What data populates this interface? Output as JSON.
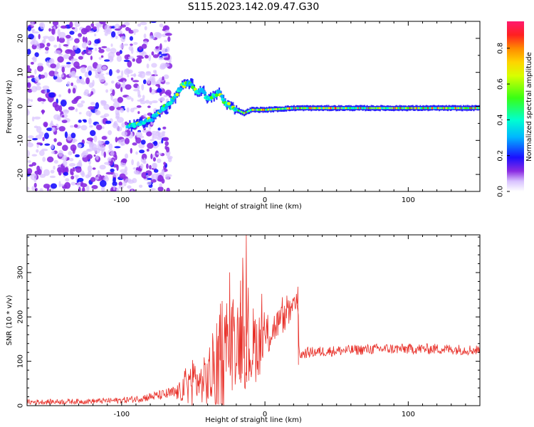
{
  "figure": {
    "title": "S115.2023.142.09.47.G30"
  },
  "chart_data": [
    {
      "type": "heatmap",
      "xlabel": "Height of straight line (km)",
      "ylabel": "Frequency (Hz)",
      "colorbar_label": "Normalized spectral amplitude",
      "xlim": [
        -166,
        150
      ],
      "ylim": [
        -25,
        25
      ],
      "xticks": [
        -100,
        0,
        100
      ],
      "yticks": [
        -20,
        -10,
        0,
        10,
        20
      ],
      "colorbar_ticks": [
        0.0,
        0.2,
        0.4,
        0.6,
        0.8
      ],
      "colorbar_range": [
        0,
        0.95
      ],
      "colormap": [
        "#ffffff",
        "#d8c2ff",
        "#8a2be2",
        "#1a10ff",
        "#00b7ff",
        "#00ffd0",
        "#39ff14",
        "#d8ff00",
        "#ffd400",
        "#ff8c00",
        "#ff2020",
        "#ff1a6e"
      ],
      "ridge": {
        "x": [
          -96,
          -88,
          -80,
          -72,
          -64,
          -58,
          -52,
          -48,
          -44,
          -40,
          -36,
          -32,
          -28,
          -24,
          -20,
          -15,
          -10,
          -5,
          0,
          20,
          60,
          100,
          150
        ],
        "freq": [
          -6,
          -5,
          -4,
          -1,
          2,
          6,
          7,
          4,
          5,
          2,
          3,
          4,
          1,
          0,
          -1,
          -2,
          -1,
          -1,
          -1,
          -0.5,
          -0.5,
          -0.5,
          -0.5
        ]
      },
      "background": "noise over x < -65 km"
    },
    {
      "type": "line",
      "xlabel": "Height of straight line (km)",
      "ylabel": "SNR (10 * v/v)",
      "xlim": [
        -166,
        150
      ],
      "ylim": [
        0,
        385
      ],
      "xticks": [
        -100,
        0,
        100
      ],
      "yticks": [
        0,
        100,
        200,
        300
      ],
      "color": "#e8312a",
      "envelope": {
        "x": [
          -166,
          -120,
          -100,
          -90,
          -80,
          -70,
          -60,
          -55,
          -50,
          -45,
          -40,
          -35,
          -30,
          -25,
          -20,
          -15,
          -12,
          -10,
          -5,
          0,
          5,
          10,
          15,
          20,
          23,
          24,
          25,
          30,
          40,
          60,
          80,
          100,
          120,
          150
        ],
        "mean": [
          8,
          10,
          12,
          15,
          20,
          25,
          30,
          45,
          60,
          50,
          60,
          80,
          110,
          130,
          150,
          160,
          120,
          130,
          140,
          150,
          170,
          190,
          200,
          220,
          230,
          110,
          115,
          120,
          122,
          125,
          128,
          128,
          128,
          125
        ],
        "amp": [
          6,
          6,
          7,
          8,
          10,
          12,
          20,
          45,
          60,
          40,
          70,
          100,
          120,
          110,
          100,
          120,
          90,
          100,
          80,
          60,
          40,
          35,
          30,
          25,
          20,
          12,
          12,
          12,
          12,
          12,
          12,
          12,
          12,
          12
        ]
      },
      "peaks": [
        {
          "x": -13,
          "y": 385
        },
        {
          "x": -17,
          "y": 282
        },
        {
          "x": -31,
          "y": 230
        },
        {
          "x": 23,
          "y": 268
        }
      ]
    }
  ]
}
